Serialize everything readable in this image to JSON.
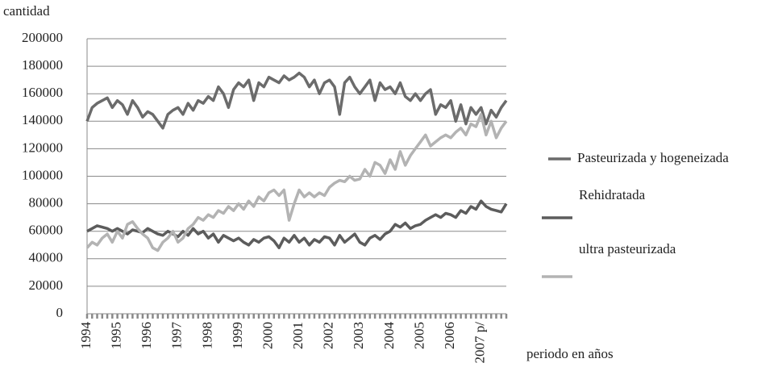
{
  "chart_data": {
    "type": "line",
    "y_label": "cantidad",
    "x_label": "periodo en años",
    "categories": [
      "1994",
      null,
      null,
      null,
      null,
      null,
      "1995",
      null,
      null,
      null,
      null,
      null,
      "1996",
      null,
      null,
      null,
      null,
      null,
      "1997",
      null,
      null,
      null,
      null,
      null,
      "1998",
      null,
      null,
      null,
      null,
      null,
      "1999",
      null,
      null,
      null,
      null,
      null,
      "2000",
      null,
      null,
      null,
      null,
      null,
      "2001",
      null,
      null,
      null,
      null,
      null,
      "2002",
      null,
      null,
      null,
      null,
      null,
      "2003",
      null,
      null,
      null,
      null,
      null,
      "2004",
      null,
      null,
      null,
      null,
      null,
      "2005",
      null,
      null,
      null,
      null,
      null,
      "2006",
      null,
      null,
      null,
      null,
      null,
      "2007 p/",
      null,
      null,
      null,
      null,
      null
    ],
    "series": [
      {
        "name": "Pasteurizada y hogeneizada",
        "color": "#6b6b6b",
        "values": [
          140000,
          150000,
          153000,
          155000,
          157000,
          150000,
          155000,
          152000,
          145000,
          155000,
          150000,
          143000,
          147000,
          145000,
          140000,
          135000,
          145000,
          148000,
          150000,
          145000,
          153000,
          148000,
          155000,
          153000,
          158000,
          155000,
          165000,
          160000,
          150000,
          163000,
          168000,
          165000,
          170000,
          155000,
          168000,
          165000,
          172000,
          170000,
          168000,
          173000,
          170000,
          172000,
          175000,
          172000,
          165000,
          170000,
          160000,
          168000,
          170000,
          165000,
          145000,
          168000,
          172000,
          165000,
          160000,
          165000,
          170000,
          155000,
          168000,
          163000,
          165000,
          160000,
          168000,
          158000,
          155000,
          160000,
          155000,
          160000,
          163000,
          145000,
          152000,
          150000,
          155000,
          140000,
          152000,
          138000,
          150000,
          145000,
          150000,
          138000,
          148000,
          143000,
          150000,
          155000
        ]
      },
      {
        "name": "Rehidratada",
        "color": "#5c5c5c",
        "values": [
          60000,
          62000,
          64000,
          63000,
          62000,
          60000,
          62000,
          60000,
          58000,
          61000,
          60000,
          59000,
          62000,
          60000,
          58000,
          57000,
          60000,
          58000,
          56000,
          60000,
          57000,
          62000,
          58000,
          60000,
          55000,
          58000,
          52000,
          57000,
          55000,
          53000,
          55000,
          52000,
          50000,
          54000,
          52000,
          55000,
          56000,
          53000,
          48000,
          55000,
          52000,
          57000,
          52000,
          55000,
          50000,
          54000,
          52000,
          56000,
          55000,
          50000,
          57000,
          52000,
          55000,
          58000,
          52000,
          50000,
          55000,
          57000,
          54000,
          58000,
          60000,
          65000,
          63000,
          66000,
          62000,
          64000,
          65000,
          68000,
          70000,
          72000,
          70000,
          73000,
          72000,
          70000,
          75000,
          73000,
          78000,
          76000,
          82000,
          78000,
          76000,
          75000,
          74000,
          80000
        ]
      },
      {
        "name": "ultra pasteurizada",
        "color": "#b3b3b3",
        "values": [
          48000,
          52000,
          50000,
          55000,
          58000,
          52000,
          60000,
          55000,
          65000,
          67000,
          62000,
          58000,
          55000,
          48000,
          46000,
          52000,
          55000,
          60000,
          52000,
          55000,
          62000,
          65000,
          70000,
          68000,
          72000,
          70000,
          75000,
          73000,
          78000,
          75000,
          80000,
          76000,
          82000,
          78000,
          85000,
          82000,
          88000,
          90000,
          86000,
          90000,
          68000,
          80000,
          90000,
          85000,
          88000,
          85000,
          88000,
          86000,
          92000,
          95000,
          97000,
          96000,
          100000,
          97000,
          98000,
          105000,
          100000,
          110000,
          108000,
          102000,
          112000,
          105000,
          118000,
          108000,
          115000,
          120000,
          125000,
          130000,
          122000,
          125000,
          128000,
          130000,
          128000,
          132000,
          135000,
          130000,
          138000,
          136000,
          145000,
          130000,
          140000,
          128000,
          135000,
          140000
        ]
      }
    ],
    "ylim": [
      0,
      200000
    ],
    "yticks": [
      0,
      20000,
      40000,
      60000,
      80000,
      100000,
      120000,
      140000,
      160000,
      180000,
      200000
    ],
    "grid": true,
    "legend": "right"
  }
}
